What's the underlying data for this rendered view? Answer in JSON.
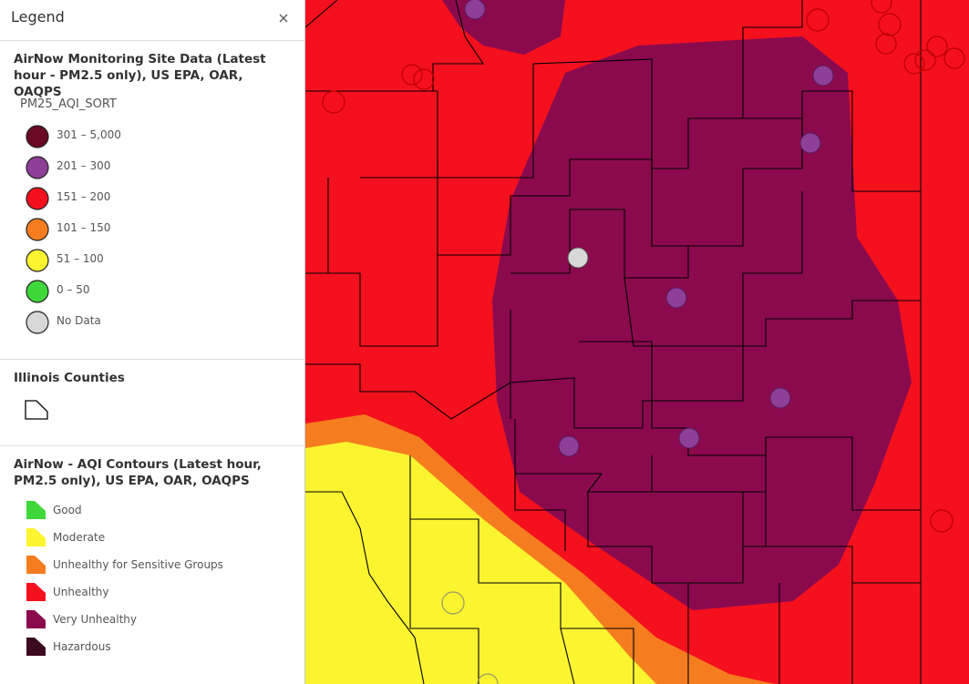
{
  "legend": {
    "title": "Legend",
    "sections": [
      {
        "title": "AirNow Monitoring Site Data (Latest hour - PM2.5 only), US EPA, OAR, OAQPS",
        "field": "PM25_AQI_SORT",
        "items": [
          {
            "label": "301 – 5,000",
            "color": "#6b0a24"
          },
          {
            "label": "201 – 300",
            "color": "#8e3f97"
          },
          {
            "label": "151 – 200",
            "color": "#f5101e"
          },
          {
            "label": "101 – 150",
            "color": "#f57d1f"
          },
          {
            "label": "51 – 100",
            "color": "#fbf530"
          },
          {
            "label": "0 – 50",
            "color": "#3fd83a"
          },
          {
            "label": "No Data",
            "color": "#d8d8d8"
          }
        ]
      },
      {
        "title": "Illinois Counties"
      },
      {
        "title": "AirNow - AQI Contours (Latest hour, PM2.5 only), US EPA, OAR, OAQPS",
        "items": [
          {
            "label": "Good",
            "color": "#3fd83a"
          },
          {
            "label": "Moderate",
            "color": "#fbf530"
          },
          {
            "label": "Unhealthy for Sensitive Groups",
            "color": "#f57d1f"
          },
          {
            "label": "Unhealthy",
            "color": "#f5101e"
          },
          {
            "label": "Very Unhealthy",
            "color": "#8b0a4e"
          },
          {
            "label": "Hazardous",
            "color": "#3b0a1e"
          }
        ]
      }
    ]
  }
}
